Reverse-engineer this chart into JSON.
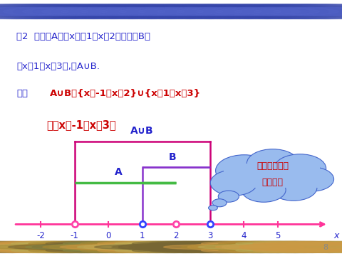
{
  "bg_color": "#ffffff",
  "line1": "例2  设集合A＝｛x｜－1＜x＜2｝，集合B＝",
  "line2": "｛x｜1＜x＜3｝,求A∪B.",
  "line3_pre": "解：A∪B＝",
  "line3_main": "{x｜-1＜x＜2}∪{x｜1＜x＜3}",
  "line4": "＝｛x｜-1＜x＜3｝",
  "union_label": "A∪B",
  "note_line1": "画数轴、找端",
  "note_line2": "点是关键",
  "axis_color": "#ff3399",
  "axis_range": [
    -2.8,
    6.5
  ],
  "tick_positions": [
    -2,
    -1,
    0,
    1,
    2,
    3,
    4,
    5
  ],
  "tick_labels": [
    "-2",
    "-1",
    "0",
    "1",
    "2",
    "3",
    "4",
    "5"
  ],
  "x_label": "x",
  "set_A_range": [
    -1,
    2
  ],
  "set_B_range": [
    1,
    3
  ],
  "set_AB_color": "#cc0077",
  "set_A_color": "#44bb44",
  "set_B_color": "#8833cc",
  "dot_color_pink": "#ff44aa",
  "dot_color_blue": "#3344ff",
  "text_color_blue": "#2222cc",
  "text_color_red": "#cc0000",
  "cloud_fill": "#99bbee",
  "cloud_edge": "#4466cc",
  "cloud_gradient_top": "#c8ddff",
  "cloud_gradient_bot": "#88aadd",
  "page_num": "8"
}
